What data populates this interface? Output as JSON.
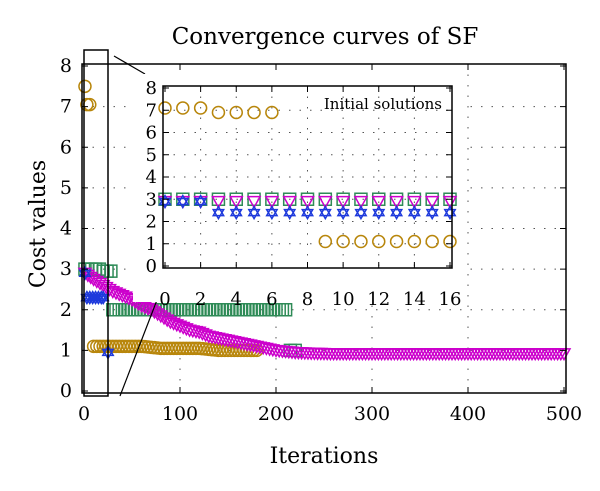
{
  "chart_data": [
    {
      "type": "scatter",
      "title": "Convergence curves of SF",
      "xlabel": "Iterations",
      "ylabel": "Cost values",
      "xlim": [
        0,
        500
      ],
      "ylim": [
        0,
        8
      ],
      "xticks": [
        0,
        100,
        200,
        300,
        400,
        500
      ],
      "yticks": [
        0,
        1,
        2,
        3,
        4,
        5,
        6,
        7,
        8
      ],
      "grid": "dotted",
      "series": [
        {
          "marker": "circle",
          "color": "#b8860b",
          "points": [
            [
              1,
              7.5
            ],
            [
              3,
              7.05
            ],
            [
              6,
              7.05
            ],
            [
              10,
              1.1
            ],
            [
              20,
              1.1
            ],
            [
              40,
              1.1
            ],
            [
              60,
              1.1
            ],
            [
              80,
              1.05
            ],
            [
              100,
              1.05
            ],
            [
              120,
              1.05
            ],
            [
              140,
              1.0
            ],
            [
              160,
              1.0
            ],
            [
              180,
              1.0
            ]
          ]
        },
        {
          "marker": "square",
          "color": "#2e8b57",
          "points": [
            [
              1,
              3.0
            ],
            [
              4,
              3.0
            ],
            [
              8,
              3.0
            ],
            [
              12,
              3.0
            ],
            [
              16,
              3.0
            ],
            [
              20,
              2.95
            ],
            [
              24,
              2.95
            ],
            [
              28,
              2.95
            ],
            [
              30,
              2.0
            ],
            [
              60,
              2.0
            ],
            [
              90,
              2.0
            ],
            [
              120,
              2.0
            ],
            [
              150,
              2.0
            ],
            [
              180,
              2.0
            ],
            [
              210,
              2.0
            ],
            [
              215,
              1.0
            ],
            [
              220,
              1.0
            ]
          ]
        },
        {
          "marker": "triangle-down",
          "color": "#cc00cc",
          "points": [
            [
              1,
              2.9
            ],
            [
              10,
              2.75
            ],
            [
              20,
              2.6
            ],
            [
              30,
              2.45
            ],
            [
              40,
              2.35
            ],
            [
              50,
              2.25
            ],
            [
              60,
              2.1
            ],
            [
              70,
              2.0
            ],
            [
              80,
              1.85
            ],
            [
              90,
              1.7
            ],
            [
              100,
              1.6
            ],
            [
              110,
              1.5
            ],
            [
              120,
              1.45
            ],
            [
              130,
              1.35
            ],
            [
              140,
              1.3
            ],
            [
              150,
              1.25
            ],
            [
              160,
              1.2
            ],
            [
              170,
              1.15
            ],
            [
              180,
              1.1
            ],
            [
              190,
              1.05
            ],
            [
              200,
              1.0
            ],
            [
              220,
              0.95
            ],
            [
              240,
              0.93
            ],
            [
              260,
              0.92
            ],
            [
              280,
              0.92
            ],
            [
              300,
              0.92
            ],
            [
              320,
              0.92
            ],
            [
              340,
              0.92
            ],
            [
              360,
              0.92
            ],
            [
              380,
              0.92
            ],
            [
              400,
              0.92
            ],
            [
              420,
              0.92
            ],
            [
              440,
              0.92
            ],
            [
              460,
              0.92
            ],
            [
              480,
              0.92
            ],
            [
              500,
              0.92
            ]
          ]
        },
        {
          "marker": "star",
          "color": "#1e3adc",
          "points": [
            [
              1,
              2.9
            ],
            [
              3,
              2.3
            ],
            [
              6,
              2.3
            ],
            [
              9,
              2.3
            ],
            [
              12,
              2.3
            ],
            [
              15,
              2.3
            ],
            [
              18,
              2.3
            ],
            [
              20,
              2.3
            ],
            [
              25,
              0.95
            ]
          ]
        }
      ]
    },
    {
      "type": "scatter",
      "xlim": [
        0,
        16
      ],
      "ylim": [
        0,
        8
      ],
      "xticks": [
        0,
        2,
        4,
        6,
        8,
        10,
        12,
        14,
        16
      ],
      "yticks": [
        0,
        1,
        2,
        3,
        4,
        5,
        6,
        7,
        8
      ],
      "legend": "Initial solutions",
      "legend_placement": "top-right",
      "grid": "dotted",
      "series": [
        {
          "marker": "circle",
          "color": "#b8860b",
          "points": [
            [
              0,
              7.1
            ],
            [
              1,
              7.1
            ],
            [
              2,
              7.1
            ],
            [
              3,
              6.9
            ],
            [
              4,
              6.9
            ],
            [
              5,
              6.9
            ],
            [
              6,
              6.9
            ],
            [
              9,
              1.1
            ],
            [
              10,
              1.1
            ],
            [
              11,
              1.1
            ],
            [
              12,
              1.1
            ],
            [
              13,
              1.1
            ],
            [
              14,
              1.1
            ],
            [
              15,
              1.1
            ],
            [
              16,
              1.1
            ]
          ]
        },
        {
          "marker": "square",
          "color": "#2e8b57",
          "points": [
            [
              0,
              3.0
            ],
            [
              1,
              3.0
            ],
            [
              2,
              3.0
            ],
            [
              3,
              3.0
            ],
            [
              4,
              3.0
            ],
            [
              5,
              3.0
            ],
            [
              6,
              3.0
            ],
            [
              7,
              3.0
            ],
            [
              8,
              3.0
            ],
            [
              9,
              3.0
            ],
            [
              10,
              3.0
            ],
            [
              11,
              3.0
            ],
            [
              12,
              3.0
            ],
            [
              13,
              3.0
            ],
            [
              14,
              3.0
            ],
            [
              15,
              3.0
            ],
            [
              16,
              3.0
            ]
          ]
        },
        {
          "marker": "triangle-down",
          "color": "#cc00cc",
          "points": [
            [
              0,
              2.9
            ],
            [
              1,
              2.9
            ],
            [
              2,
              2.9
            ],
            [
              3,
              2.9
            ],
            [
              4,
              2.9
            ],
            [
              5,
              2.9
            ],
            [
              6,
              2.9
            ],
            [
              7,
              2.9
            ],
            [
              8,
              2.9
            ],
            [
              9,
              2.9
            ],
            [
              10,
              2.9
            ],
            [
              11,
              2.9
            ],
            [
              12,
              2.9
            ],
            [
              13,
              2.9
            ],
            [
              14,
              2.9
            ],
            [
              15,
              2.9
            ],
            [
              16,
              2.9
            ]
          ]
        },
        {
          "marker": "star",
          "color": "#1e3adc",
          "points": [
            [
              0,
              2.9
            ],
            [
              1,
              2.9
            ],
            [
              2,
              2.9
            ],
            [
              3,
              2.4
            ],
            [
              4,
              2.4
            ],
            [
              5,
              2.4
            ],
            [
              6,
              2.4
            ],
            [
              7,
              2.4
            ],
            [
              8,
              2.4
            ],
            [
              9,
              2.4
            ],
            [
              10,
              2.4
            ],
            [
              11,
              2.4
            ],
            [
              12,
              2.4
            ],
            [
              13,
              2.4
            ],
            [
              14,
              2.4
            ],
            [
              15,
              2.4
            ],
            [
              16,
              2.4
            ]
          ]
        }
      ]
    }
  ]
}
